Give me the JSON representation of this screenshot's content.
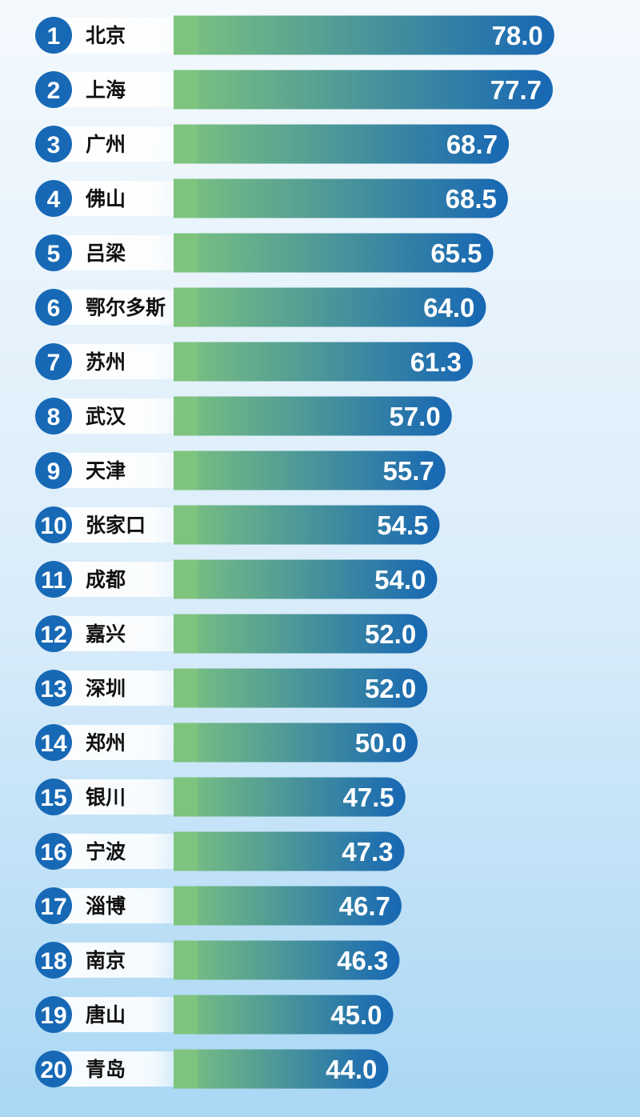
{
  "chart_data": {
    "type": "bar",
    "orientation": "horizontal",
    "categories": [
      "北京",
      "上海",
      "广州",
      "佛山",
      "吕梁",
      "鄂尔多斯",
      "苏州",
      "武汉",
      "天津",
      "张家口",
      "成都",
      "嘉兴",
      "深圳",
      "郑州",
      "银川",
      "宁波",
      "淄博",
      "南京",
      "唐山",
      "青岛"
    ],
    "ranks": [
      "1",
      "2",
      "3",
      "4",
      "5",
      "6",
      "7",
      "8",
      "9",
      "10",
      "11",
      "12",
      "13",
      "14",
      "15",
      "16",
      "17",
      "18",
      "19",
      "20"
    ],
    "values": [
      78.0,
      77.7,
      68.7,
      68.5,
      65.5,
      64.0,
      61.3,
      57.0,
      55.7,
      54.5,
      54.0,
      52.0,
      52.0,
      50.0,
      47.5,
      47.3,
      46.7,
      46.3,
      45.0,
      44.0
    ],
    "value_labels": [
      "78.0",
      "77.7",
      "68.7",
      "68.5",
      "65.5",
      "64.0",
      "61.3",
      "57.0",
      "55.7",
      "54.5",
      "54.0",
      "52.0",
      "52.0",
      "50.0",
      "47.5",
      "47.3",
      "46.7",
      "46.3",
      "45.0",
      "44.0"
    ],
    "grid": false,
    "legend": "none"
  },
  "colors": {
    "bar_start": "#7ec47f",
    "bar_end": "#1767b4",
    "rank_circle": "#1769b6",
    "label_bg": "#ffffff"
  }
}
